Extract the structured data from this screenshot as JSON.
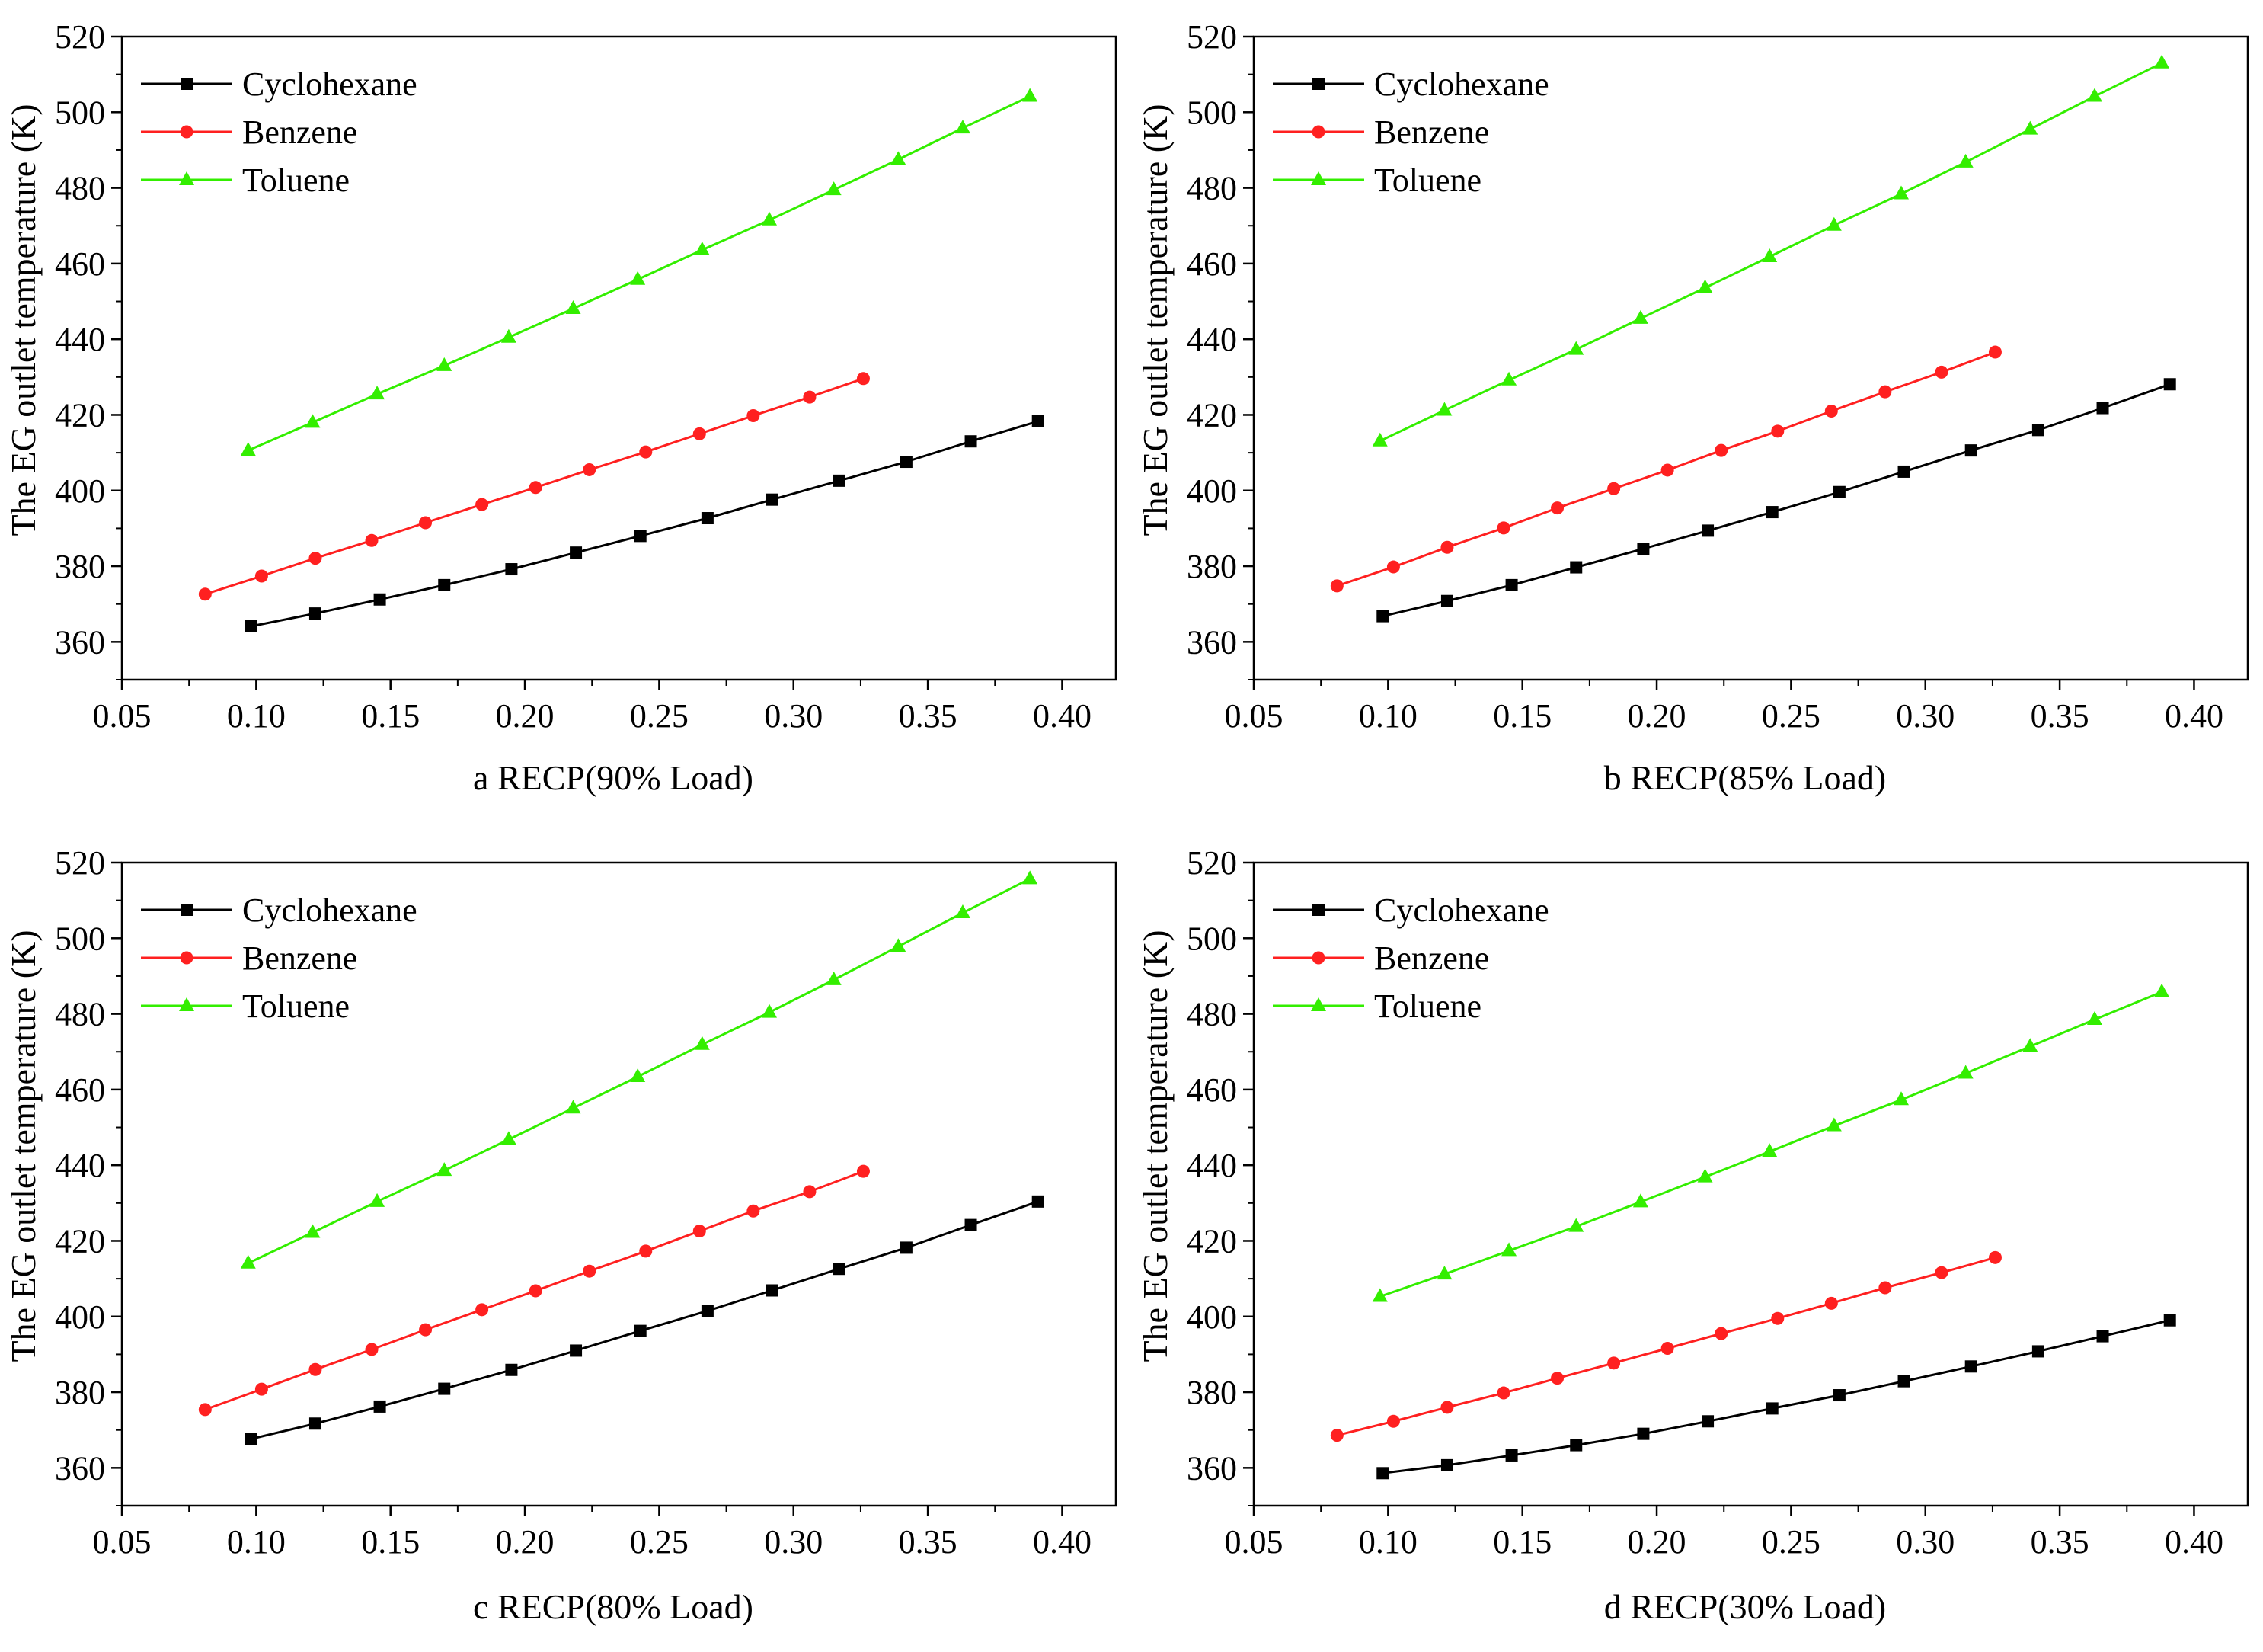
{
  "chart_data": [
    {
      "type": "line",
      "xlabel": "a RECP(90% Load)",
      "ylabel": "The EG outlet temperature (K)",
      "xlim": [
        0.05,
        0.42
      ],
      "ylim": [
        350,
        520
      ],
      "xticks": [
        "0.05",
        "0.10",
        "0.15",
        "0.20",
        "0.25",
        "0.30",
        "0.35",
        "0.40"
      ],
      "yticks": [
        "360",
        "380",
        "400",
        "420",
        "440",
        "460",
        "480",
        "500",
        "520"
      ],
      "legend": "top-left",
      "series": [
        {
          "name": "Cyclohexane",
          "color": "#000000",
          "marker": "square",
          "x": [
            0.098,
            0.122,
            0.146,
            0.17,
            0.195,
            0.219,
            0.243,
            0.268,
            0.292,
            0.317,
            0.342,
            0.366,
            0.391
          ],
          "y": [
            364.1,
            367.5,
            371.2,
            375.0,
            379.2,
            383.6,
            388.0,
            392.7,
            397.6,
            402.6,
            407.6,
            413.0,
            418.3
          ]
        },
        {
          "name": "Benzene",
          "color": "#ff2020",
          "marker": "circle",
          "x": [
            0.081,
            0.102,
            0.122,
            0.143,
            0.163,
            0.184,
            0.204,
            0.224,
            0.245,
            0.265,
            0.285,
            0.306,
            0.326
          ],
          "y": [
            372.6,
            377.4,
            382.1,
            386.8,
            391.5,
            396.3,
            400.8,
            405.5,
            410.2,
            415.0,
            419.8,
            424.7,
            429.6
          ]
        },
        {
          "name": "Toluene",
          "color": "#33ee00",
          "marker": "triangle",
          "x": [
            0.097,
            0.121,
            0.145,
            0.17,
            0.194,
            0.218,
            0.242,
            0.266,
            0.291,
            0.315,
            0.339,
            0.363,
            0.388
          ],
          "y": [
            410.6,
            418.0,
            425.5,
            433.0,
            440.5,
            448.1,
            455.8,
            463.6,
            471.5,
            479.5,
            487.5,
            495.8,
            504.2
          ]
        }
      ]
    },
    {
      "type": "line",
      "xlabel": "b RECP(85% Load)",
      "ylabel": "The EG outlet temperature (K)",
      "xlim": [
        0.05,
        0.42
      ],
      "ylim": [
        350,
        520
      ],
      "xticks": [
        "0.05",
        "0.10",
        "0.15",
        "0.20",
        "0.25",
        "0.30",
        "0.35",
        "0.40"
      ],
      "yticks": [
        "360",
        "380",
        "400",
        "420",
        "440",
        "460",
        "480",
        "500",
        "520"
      ],
      "legend": "top-left",
      "series": [
        {
          "name": "Cyclohexane",
          "color": "#000000",
          "marker": "square",
          "x": [
            0.098,
            0.122,
            0.146,
            0.17,
            0.195,
            0.219,
            0.243,
            0.268,
            0.292,
            0.317,
            0.342,
            0.366,
            0.391
          ],
          "y": [
            366.8,
            370.8,
            375.0,
            379.7,
            384.6,
            389.4,
            394.3,
            399.6,
            405.0,
            410.6,
            416.0,
            421.8,
            428.1
          ]
        },
        {
          "name": "Benzene",
          "color": "#ff2020",
          "marker": "circle",
          "x": [
            0.081,
            0.102,
            0.122,
            0.143,
            0.163,
            0.184,
            0.204,
            0.224,
            0.245,
            0.265,
            0.285,
            0.306,
            0.326
          ],
          "y": [
            374.8,
            379.8,
            385.0,
            390.1,
            395.4,
            400.5,
            405.4,
            410.6,
            415.7,
            421.0,
            426.1,
            431.3,
            436.6
          ]
        },
        {
          "name": "Toluene",
          "color": "#33ee00",
          "marker": "triangle",
          "x": [
            0.097,
            0.121,
            0.145,
            0.17,
            0.194,
            0.218,
            0.242,
            0.266,
            0.291,
            0.315,
            0.339,
            0.363,
            0.388
          ],
          "y": [
            413.1,
            421.2,
            429.2,
            437.3,
            445.5,
            453.6,
            461.8,
            470.1,
            478.4,
            486.8,
            495.5,
            504.2,
            513.0
          ]
        }
      ]
    },
    {
      "type": "line",
      "xlabel": "c RECP(80% Load)",
      "ylabel": "The EG outlet temperature (K)",
      "xlim": [
        0.05,
        0.42
      ],
      "ylim": [
        350,
        520
      ],
      "xticks": [
        "0.05",
        "0.10",
        "0.15",
        "0.20",
        "0.25",
        "0.30",
        "0.35",
        "0.40"
      ],
      "yticks": [
        "360",
        "380",
        "400",
        "420",
        "440",
        "460",
        "480",
        "500",
        "520"
      ],
      "legend": "top-left",
      "series": [
        {
          "name": "Cyclohexane",
          "color": "#000000",
          "marker": "square",
          "x": [
            0.098,
            0.122,
            0.146,
            0.17,
            0.195,
            0.219,
            0.243,
            0.268,
            0.292,
            0.317,
            0.342,
            0.366,
            0.391
          ],
          "y": [
            367.6,
            371.7,
            376.2,
            380.9,
            385.9,
            391.0,
            396.2,
            401.5,
            406.9,
            412.6,
            418.2,
            424.2,
            430.4
          ]
        },
        {
          "name": "Benzene",
          "color": "#ff2020",
          "marker": "circle",
          "x": [
            0.081,
            0.102,
            0.122,
            0.143,
            0.163,
            0.184,
            0.204,
            0.224,
            0.245,
            0.265,
            0.285,
            0.306,
            0.326
          ],
          "y": [
            375.4,
            380.8,
            386.0,
            391.3,
            396.5,
            401.8,
            406.8,
            412.0,
            417.3,
            422.6,
            427.9,
            433.0,
            438.4
          ]
        },
        {
          "name": "Toluene",
          "color": "#33ee00",
          "marker": "triangle",
          "x": [
            0.097,
            0.121,
            0.145,
            0.17,
            0.194,
            0.218,
            0.242,
            0.266,
            0.291,
            0.315,
            0.339,
            0.363,
            0.388
          ],
          "y": [
            414.1,
            422.2,
            430.4,
            438.6,
            446.8,
            455.1,
            463.4,
            471.9,
            480.4,
            489.0,
            497.8,
            506.7,
            515.7
          ]
        }
      ]
    },
    {
      "type": "line",
      "xlabel": "d RECP(30% Load)",
      "ylabel": "The EG outlet temperature (K)",
      "xlim": [
        0.05,
        0.42
      ],
      "ylim": [
        350,
        520
      ],
      "xticks": [
        "0.05",
        "0.10",
        "0.15",
        "0.20",
        "0.25",
        "0.30",
        "0.35",
        "0.40"
      ],
      "yticks": [
        "360",
        "380",
        "400",
        "420",
        "440",
        "460",
        "480",
        "500",
        "520"
      ],
      "legend": "top-left",
      "series": [
        {
          "name": "Cyclohexane",
          "color": "#000000",
          "marker": "square",
          "x": [
            0.098,
            0.122,
            0.146,
            0.17,
            0.195,
            0.219,
            0.243,
            0.268,
            0.292,
            0.317,
            0.342,
            0.366,
            0.391
          ],
          "y": [
            358.6,
            360.7,
            363.3,
            366.0,
            369.0,
            372.3,
            375.7,
            379.2,
            382.9,
            386.8,
            390.8,
            394.8,
            399.0
          ]
        },
        {
          "name": "Benzene",
          "color": "#ff2020",
          "marker": "circle",
          "x": [
            0.081,
            0.102,
            0.122,
            0.143,
            0.163,
            0.184,
            0.204,
            0.224,
            0.245,
            0.265,
            0.285,
            0.306,
            0.326
          ],
          "y": [
            368.6,
            372.3,
            376.0,
            379.8,
            383.7,
            387.7,
            391.6,
            395.5,
            399.5,
            403.5,
            407.6,
            411.6,
            415.6
          ]
        },
        {
          "name": "Toluene",
          "color": "#33ee00",
          "marker": "triangle",
          "x": [
            0.097,
            0.121,
            0.145,
            0.17,
            0.194,
            0.218,
            0.242,
            0.266,
            0.291,
            0.315,
            0.339,
            0.363,
            0.388
          ],
          "y": [
            405.3,
            411.2,
            417.4,
            423.8,
            430.3,
            436.9,
            443.6,
            450.4,
            457.3,
            464.3,
            471.4,
            478.5,
            485.8
          ]
        }
      ]
    }
  ]
}
